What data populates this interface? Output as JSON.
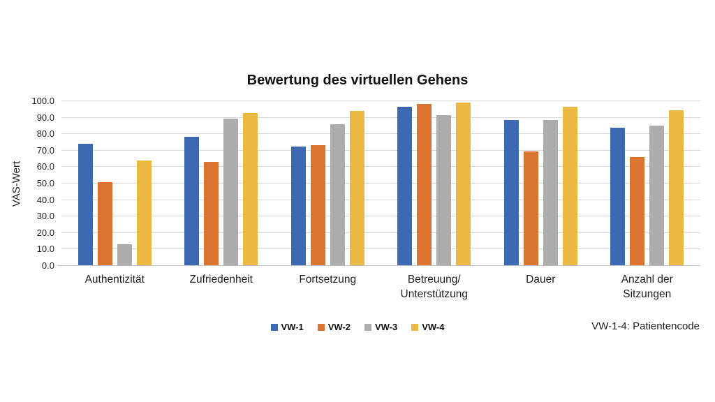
{
  "title": "Bewertung des virtuellen Gehens",
  "note": "VW-1-4: Patientencode",
  "chart_data": {
    "type": "bar",
    "title": "Bewertung des virtuellen Gehens",
    "xlabel": "",
    "ylabel": "VAS-Wert",
    "ylim": [
      0,
      100
    ],
    "ytick_step": 10,
    "ytick_labels": [
      "0.0",
      "10.0",
      "20.0",
      "30.0",
      "40.0",
      "50.0",
      "60.0",
      "70.0",
      "80.0",
      "90.0",
      "100.0"
    ],
    "grid": true,
    "legend_position": "bottom",
    "categories": [
      "Authentizität",
      "Zufriedenheit",
      "Fortsetzung",
      "Betreuung/\nUnterstützung",
      "Dauer",
      "Anzahl der\nSitzungen"
    ],
    "series": [
      {
        "name": "VW-1",
        "color": "#3D68B2",
        "values": [
          74,
          78.5,
          72.5,
          96.5,
          88.5,
          84
        ]
      },
      {
        "name": "VW-2",
        "color": "#DC7431",
        "values": [
          51,
          63,
          73.5,
          98.5,
          69.5,
          66
        ]
      },
      {
        "name": "VW-3",
        "color": "#ACACAC",
        "values": [
          13,
          89.5,
          86,
          91.5,
          88.5,
          85
        ]
      },
      {
        "name": "VW-4",
        "color": "#EBB942",
        "values": [
          64,
          93,
          94,
          99,
          96.5,
          94.5
        ]
      }
    ]
  }
}
